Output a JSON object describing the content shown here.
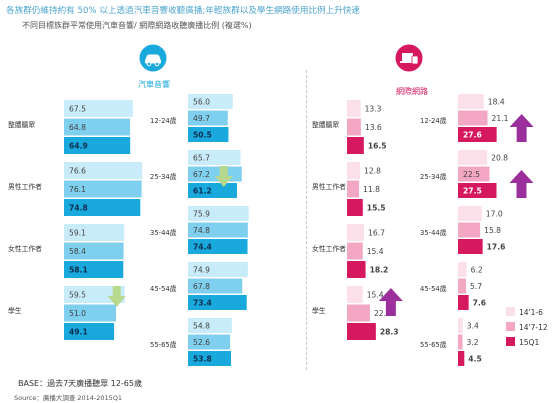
{
  "header": {
    "headline": "各族群仍維持約有 50% 以上透過汽車音響收聽廣播;年輕族群以及學生網路使用比例上升快速",
    "subhead": "不同目標族群平常使用汽車音響/ 網際網路收聽廣播比例 (複選%)"
  },
  "footer": {
    "base": "BASE：過去7天廣播聽眾 12-65歲",
    "source": "Source：廣播大調查 2014-2015Q1"
  },
  "colors": {
    "car": [
      "#c9ecfb",
      "#7fcfef",
      "#1aa9dc"
    ],
    "net": [
      "#fbe0ea",
      "#f3a7c2",
      "#d6185f"
    ],
    "car_accent": "#1aa9dc",
    "net_accent": "#d6185f",
    "arrow_green": "#b7d98f",
    "arrow_purple": "#9b2f9c"
  },
  "chart_data": [
    {
      "type": "bar",
      "orientation": "horizontal",
      "title": "汽車音響",
      "icon": "car-icon",
      "categories": [
        "整體聽眾",
        "男性工作者",
        "女性工作者",
        "學生"
      ],
      "series": [
        {
          "name": "14'1-6",
          "values": [
            67.5,
            76.6,
            59.1,
            59.5
          ]
        },
        {
          "name": "14'7-12",
          "values": [
            64.8,
            76.1,
            58.4,
            51.0
          ]
        },
        {
          "name": "15Q1",
          "values": [
            64.9,
            74.8,
            58.1,
            49.1
          ]
        }
      ],
      "trend_arrows": [
        {
          "category": "學生",
          "direction": "down"
        }
      ]
    },
    {
      "type": "bar",
      "orientation": "horizontal",
      "title": "",
      "categories": [
        "12-24歲",
        "25-34歲",
        "35-44歲",
        "45-54歲",
        "55-65歲"
      ],
      "series": [
        {
          "name": "14'1-6",
          "values": [
            56.0,
            65.7,
            75.9,
            74.9,
            54.8
          ]
        },
        {
          "name": "14'7-12",
          "values": [
            49.7,
            67.2,
            74.8,
            67.8,
            52.6
          ]
        },
        {
          "name": "15Q1",
          "values": [
            50.5,
            61.2,
            74.4,
            73.4,
            53.8
          ]
        }
      ],
      "trend_arrows": [
        {
          "category": "25-34歲",
          "direction": "down"
        }
      ]
    },
    {
      "type": "bar",
      "orientation": "horizontal",
      "title": "網際網路",
      "icon": "laptop-icon",
      "categories": [
        "整體聽眾",
        "男性工作者",
        "女性工作者",
        "學生"
      ],
      "series": [
        {
          "name": "14'1-6",
          "values": [
            13.3,
            12.8,
            16.7,
            15.4
          ]
        },
        {
          "name": "14'7-12",
          "values": [
            13.6,
            11.8,
            15.4,
            22.5
          ]
        },
        {
          "name": "15Q1",
          "values": [
            16.5,
            15.5,
            18.2,
            28.3
          ]
        }
      ],
      "trend_arrows": [
        {
          "category": "學生",
          "direction": "up"
        }
      ]
    },
    {
      "type": "bar",
      "orientation": "horizontal",
      "title": "",
      "categories": [
        "12-24歲",
        "25-34歲",
        "35-44歲",
        "45-54歲",
        "55-65歲"
      ],
      "series": [
        {
          "name": "14'1-6",
          "values": [
            18.4,
            20.8,
            17.0,
            6.2,
            3.4
          ]
        },
        {
          "name": "14'7-12",
          "values": [
            21.1,
            22.5,
            15.8,
            5.7,
            3.2
          ]
        },
        {
          "name": "15Q1",
          "values": [
            27.6,
            27.5,
            17.6,
            7.6,
            4.5
          ]
        }
      ],
      "trend_arrows": [
        {
          "category": "12-24歲",
          "direction": "up"
        },
        {
          "category": "25-34歲",
          "direction": "up"
        }
      ]
    }
  ],
  "legend": {
    "placement": "bottom-right",
    "items": [
      "14'1-6",
      "14'7-12",
      "15Q1"
    ]
  }
}
